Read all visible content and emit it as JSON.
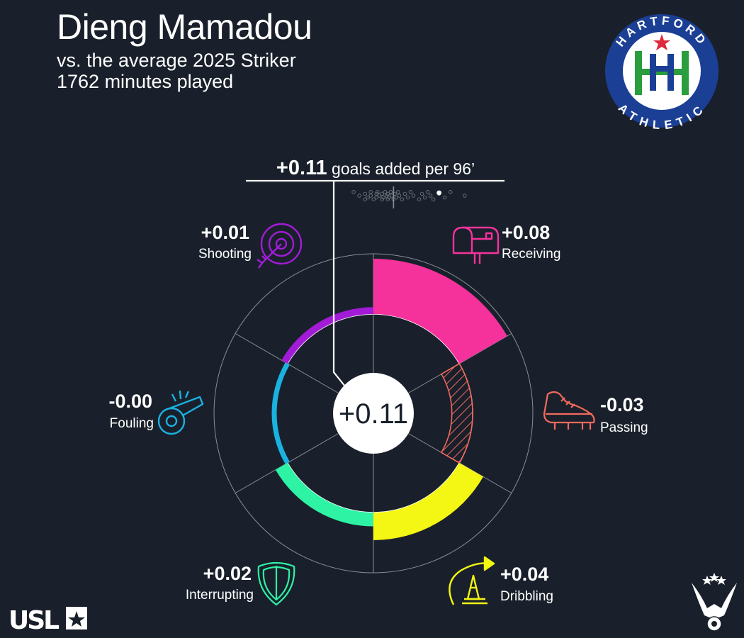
{
  "header": {
    "player_name": "Dieng Mamadou",
    "comparison": "vs. the average 2025 Striker",
    "minutes": "1762 minutes played"
  },
  "summary": {
    "total_value": "+0.11",
    "total_suffix": " goals added per 96’",
    "center_value": "+0.11"
  },
  "team_logo": {
    "name": "Hartford Athletic",
    "top_text": "HARTFORD",
    "bottom_text": "ATHLETIC",
    "colors": {
      "ring": "#1b3f94",
      "inner": "#ffffff",
      "green": "#2a9d3e",
      "blue": "#1b3f94",
      "star": "#e0283c"
    }
  },
  "league_logo": {
    "text": "USL"
  },
  "colors": {
    "background": "#19202b",
    "Receiving": "#f5329b",
    "Passing": "#f26a5c",
    "Dribbling": "#f4f613",
    "Interrupting": "#2ef2a4",
    "Fouling": "#1ab2e0",
    "Shooting": "#a21bd6"
  },
  "chart_data": {
    "type": "radial_bar",
    "title": "+0.11 goals added per 96’",
    "total": 0.11,
    "categories": [
      "Receiving",
      "Passing",
      "Dribbling",
      "Interrupting",
      "Fouling",
      "Shooting"
    ],
    "values": [
      0.08,
      -0.03,
      0.04,
      0.02,
      -0.0,
      0.01
    ],
    "labels": [
      "+0.08",
      "-0.03",
      "+0.04",
      "+0.02",
      "-0.00",
      "+0.01"
    ],
    "icons": [
      "mailbox-icon",
      "cleat-icon",
      "cone-icon",
      "shield-icon",
      "whistle-icon",
      "target-icon"
    ],
    "radial_range": [
      -0.1,
      0.1
    ],
    "negative_style": "hatched",
    "distribution": {
      "values": [
        -0.07,
        -0.06,
        -0.05,
        -0.05,
        -0.045,
        -0.04,
        -0.04,
        -0.035,
        -0.03,
        -0.03,
        -0.028,
        -0.025,
        -0.02,
        -0.02,
        -0.018,
        -0.015,
        -0.012,
        -0.01,
        -0.01,
        -0.008,
        -0.005,
        -0.003,
        0.0,
        0.002,
        0.005,
        0.008,
        0.01,
        0.015,
        0.02,
        0.025,
        0.03,
        0.035,
        0.045,
        0.05,
        0.055,
        0.06,
        0.065,
        0.07,
        0.08,
        0.09,
        0.1,
        0.125
      ],
      "player": 0.08,
      "average": 0.0,
      "range": [
        -0.1,
        0.18
      ]
    }
  }
}
